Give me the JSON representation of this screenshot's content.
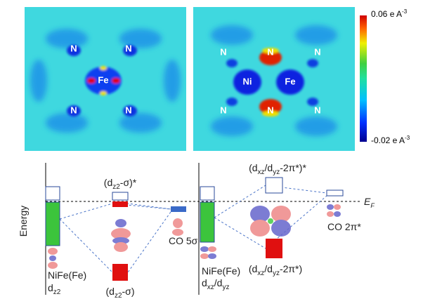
{
  "top_panels": {
    "left_map": {
      "atoms": [
        "N",
        "N",
        "N",
        "N",
        "Fe"
      ]
    },
    "right_map": {
      "atoms": [
        "N",
        "N",
        "N",
        "N",
        "N",
        "N",
        "Ni",
        "Fe"
      ]
    },
    "colorbar": {
      "max_label": {
        "main": "0.06 e A",
        "sup": "-3"
      },
      "min_label": {
        "main": "-0.02 e A",
        "sup": "-3"
      }
    }
  },
  "diagram": {
    "axis_label": "Energy",
    "fermi_label": {
      "main": "E",
      "sub": "F"
    },
    "left": {
      "antibonding": [
        "(d",
        "z2",
        "-σ)*"
      ],
      "bonding": [
        "(d",
        "z2",
        "-σ)"
      ],
      "co_level": "CO 5σ",
      "metal_name": "NiFe(Fe)",
      "metal_orbital": [
        "d",
        "z2"
      ]
    },
    "right": {
      "antibonding": [
        "(d",
        "xz",
        "/d",
        "yz",
        "-2π*)*"
      ],
      "bonding": [
        "(d",
        "xz",
        "/d",
        "yz",
        "-2π*)"
      ],
      "co_level": "CO 2π*",
      "metal_name": "NiFe(Fe)",
      "metal_orbital": [
        "d",
        "xz",
        "/d",
        "yz"
      ]
    }
  }
}
